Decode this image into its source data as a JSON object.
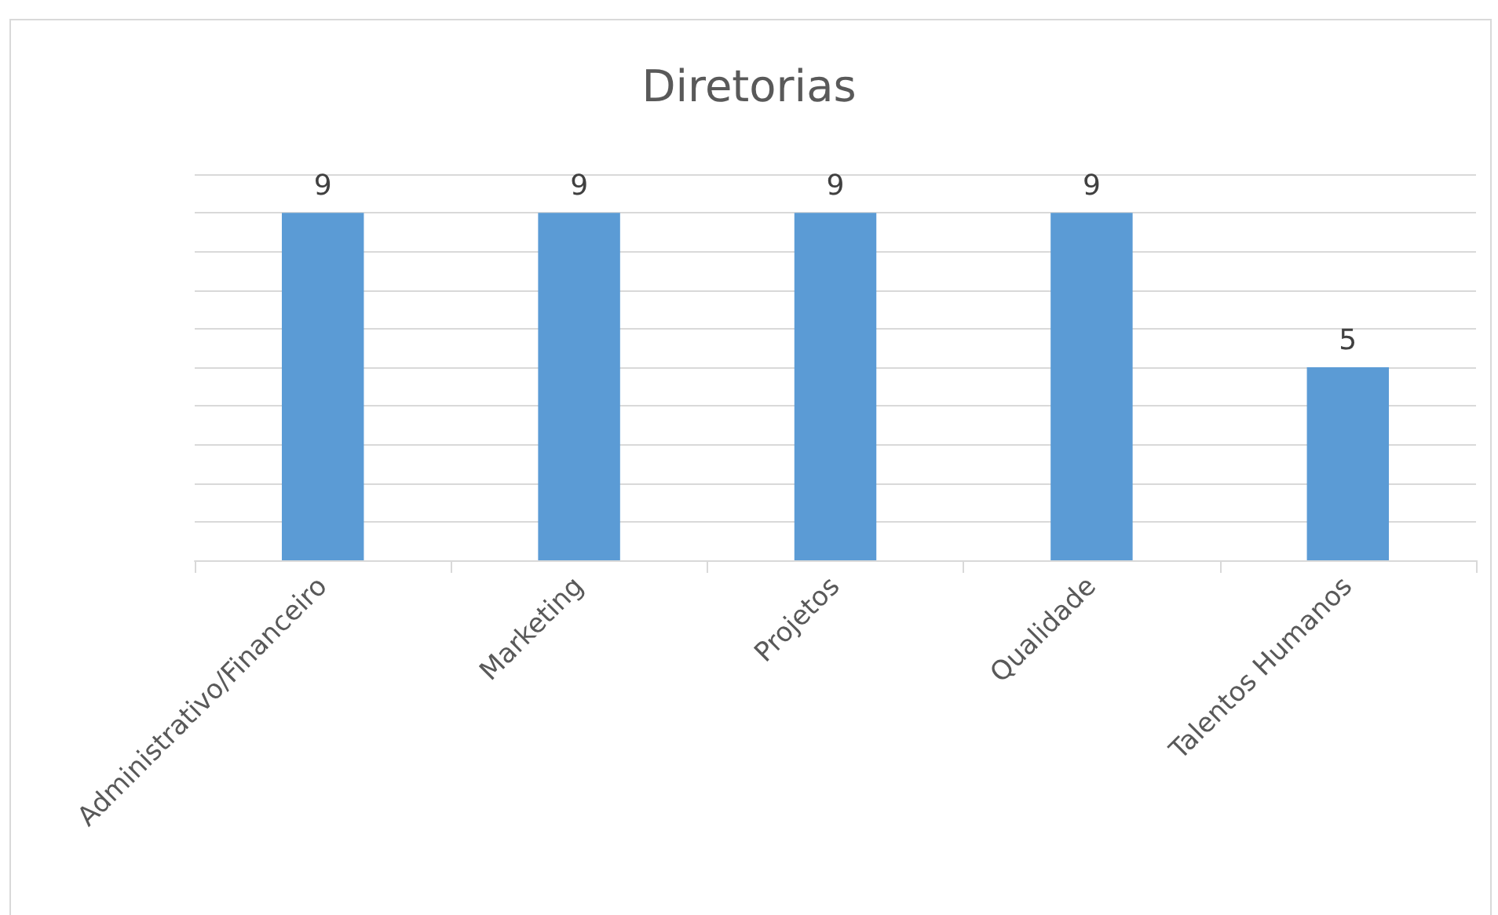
{
  "chart_data": {
    "type": "bar",
    "title": "Diretorias",
    "categories": [
      "Administrativo/Financeiro",
      "Marketing",
      "Projetos",
      "Qualidade",
      "Talentos Humanos"
    ],
    "values": [
      9,
      9,
      9,
      9,
      5
    ],
    "color": "#5b9bd5",
    "ylim": [
      0,
      10
    ],
    "yticks": [
      {
        "value": 0,
        "label": null
      },
      {
        "value": 1,
        "label": null
      },
      {
        "value": 2,
        "label": null
      },
      {
        "value": 3,
        "label": null
      },
      {
        "value": 4,
        "label": null
      },
      {
        "value": 5,
        "label": null
      },
      {
        "value": 6,
        "label": null
      },
      {
        "value": 7,
        "label": null
      },
      {
        "value": 8,
        "label": null
      },
      {
        "value": 9,
        "label": null
      },
      {
        "value": 10,
        "label": null
      }
    ],
    "grid": "y",
    "tick_labels": "x",
    "data_labels": true
  }
}
